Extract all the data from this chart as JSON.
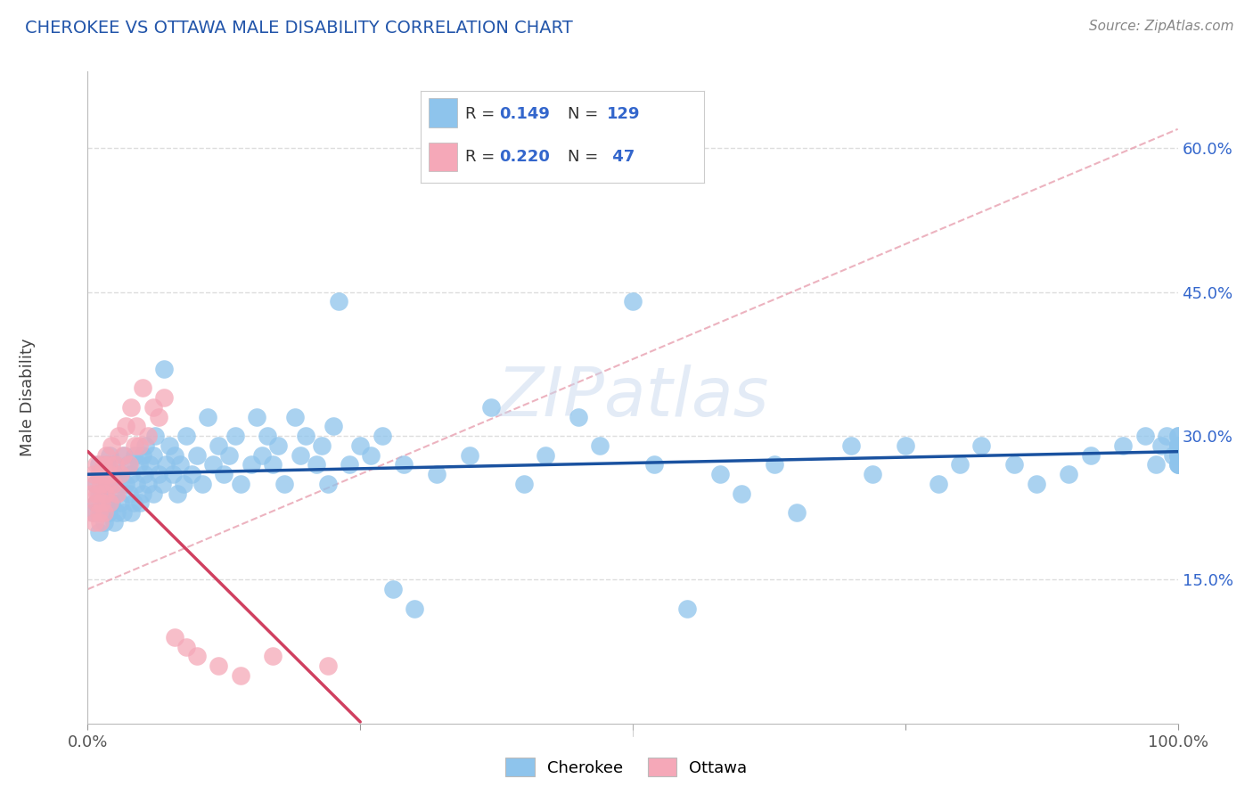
{
  "title": "CHEROKEE VS OTTAWA MALE DISABILITY CORRELATION CHART",
  "source": "Source: ZipAtlas.com",
  "ylabel": "Male Disability",
  "xlim": [
    0.0,
    1.0
  ],
  "ylim": [
    0.0,
    0.68
  ],
  "cherokee_color": "#8EC4EC",
  "ottawa_color": "#F5A8B8",
  "cherokee_line_color": "#1A52A0",
  "ottawa_line_color": "#D04060",
  "dashed_line_color": "#E8A0B0",
  "grid_color": "#DDDDDD",
  "R_cherokee": "0.149",
  "N_cherokee": "129",
  "R_ottawa": "0.220",
  "N_ottawa": "47",
  "legend_label_color": "#3366CC",
  "ytick_color": "#3366CC",
  "watermark_text": "ZIPatlas",
  "cherokee_x": [
    0.005,
    0.007,
    0.008,
    0.01,
    0.01,
    0.01,
    0.012,
    0.013,
    0.015,
    0.015,
    0.017,
    0.018,
    0.019,
    0.02,
    0.02,
    0.022,
    0.023,
    0.024,
    0.025,
    0.025,
    0.027,
    0.028,
    0.03,
    0.03,
    0.032,
    0.033,
    0.035,
    0.037,
    0.038,
    0.04,
    0.04,
    0.042,
    0.043,
    0.045,
    0.047,
    0.048,
    0.05,
    0.05,
    0.052,
    0.053,
    0.055,
    0.057,
    0.06,
    0.06,
    0.062,
    0.065,
    0.068,
    0.07,
    0.072,
    0.075,
    0.078,
    0.08,
    0.082,
    0.085,
    0.088,
    0.09,
    0.095,
    0.1,
    0.105,
    0.11,
    0.115,
    0.12,
    0.125,
    0.13,
    0.135,
    0.14,
    0.15,
    0.155,
    0.16,
    0.165,
    0.17,
    0.175,
    0.18,
    0.19,
    0.195,
    0.2,
    0.21,
    0.215,
    0.22,
    0.225,
    0.23,
    0.24,
    0.25,
    0.26,
    0.27,
    0.28,
    0.29,
    0.3,
    0.32,
    0.35,
    0.37,
    0.4,
    0.42,
    0.45,
    0.47,
    0.5,
    0.52,
    0.55,
    0.58,
    0.6,
    0.63,
    0.65,
    0.7,
    0.72,
    0.75,
    0.78,
    0.8,
    0.82,
    0.85,
    0.87,
    0.9,
    0.92,
    0.95,
    0.97,
    0.98,
    0.985,
    0.99,
    0.995,
    1.0,
    1.0,
    1.0,
    1.0,
    1.0,
    1.0,
    1.0,
    1.0,
    1.0,
    1.0,
    1.0
  ],
  "cherokee_y": [
    0.22,
    0.25,
    0.23,
    0.2,
    0.24,
    0.27,
    0.22,
    0.26,
    0.21,
    0.24,
    0.23,
    0.27,
    0.22,
    0.25,
    0.28,
    0.23,
    0.26,
    0.21,
    0.24,
    0.27,
    0.22,
    0.25,
    0.23,
    0.26,
    0.22,
    0.28,
    0.25,
    0.27,
    0.24,
    0.22,
    0.26,
    0.23,
    0.28,
    0.25,
    0.27,
    0.23,
    0.24,
    0.28,
    0.26,
    0.29,
    0.25,
    0.27,
    0.24,
    0.28,
    0.3,
    0.26,
    0.25,
    0.37,
    0.27,
    0.29,
    0.26,
    0.28,
    0.24,
    0.27,
    0.25,
    0.3,
    0.26,
    0.28,
    0.25,
    0.32,
    0.27,
    0.29,
    0.26,
    0.28,
    0.3,
    0.25,
    0.27,
    0.32,
    0.28,
    0.3,
    0.27,
    0.29,
    0.25,
    0.32,
    0.28,
    0.3,
    0.27,
    0.29,
    0.25,
    0.31,
    0.44,
    0.27,
    0.29,
    0.28,
    0.3,
    0.14,
    0.27,
    0.12,
    0.26,
    0.28,
    0.33,
    0.25,
    0.28,
    0.32,
    0.29,
    0.44,
    0.27,
    0.12,
    0.26,
    0.24,
    0.27,
    0.22,
    0.29,
    0.26,
    0.29,
    0.25,
    0.27,
    0.29,
    0.27,
    0.25,
    0.26,
    0.28,
    0.29,
    0.3,
    0.27,
    0.29,
    0.3,
    0.28,
    0.27,
    0.29,
    0.28,
    0.3,
    0.28,
    0.29,
    0.27,
    0.28,
    0.29,
    0.3,
    0.27
  ],
  "ottawa_x": [
    0.003,
    0.004,
    0.005,
    0.006,
    0.007,
    0.008,
    0.008,
    0.009,
    0.01,
    0.01,
    0.011,
    0.012,
    0.013,
    0.014,
    0.015,
    0.015,
    0.016,
    0.017,
    0.018,
    0.019,
    0.02,
    0.02,
    0.022,
    0.023,
    0.025,
    0.027,
    0.028,
    0.03,
    0.032,
    0.035,
    0.038,
    0.04,
    0.043,
    0.045,
    0.047,
    0.05,
    0.055,
    0.06,
    0.065,
    0.07,
    0.08,
    0.09,
    0.1,
    0.12,
    0.14,
    0.17,
    0.22
  ],
  "ottawa_y": [
    0.24,
    0.22,
    0.26,
    0.21,
    0.25,
    0.23,
    0.27,
    0.24,
    0.22,
    0.26,
    0.21,
    0.25,
    0.23,
    0.27,
    0.22,
    0.26,
    0.24,
    0.28,
    0.25,
    0.27,
    0.23,
    0.26,
    0.29,
    0.25,
    0.27,
    0.24,
    0.3,
    0.26,
    0.28,
    0.31,
    0.27,
    0.33,
    0.29,
    0.31,
    0.29,
    0.35,
    0.3,
    0.33,
    0.32,
    0.34,
    0.09,
    0.08,
    0.07,
    0.06,
    0.05,
    0.07,
    0.06
  ]
}
